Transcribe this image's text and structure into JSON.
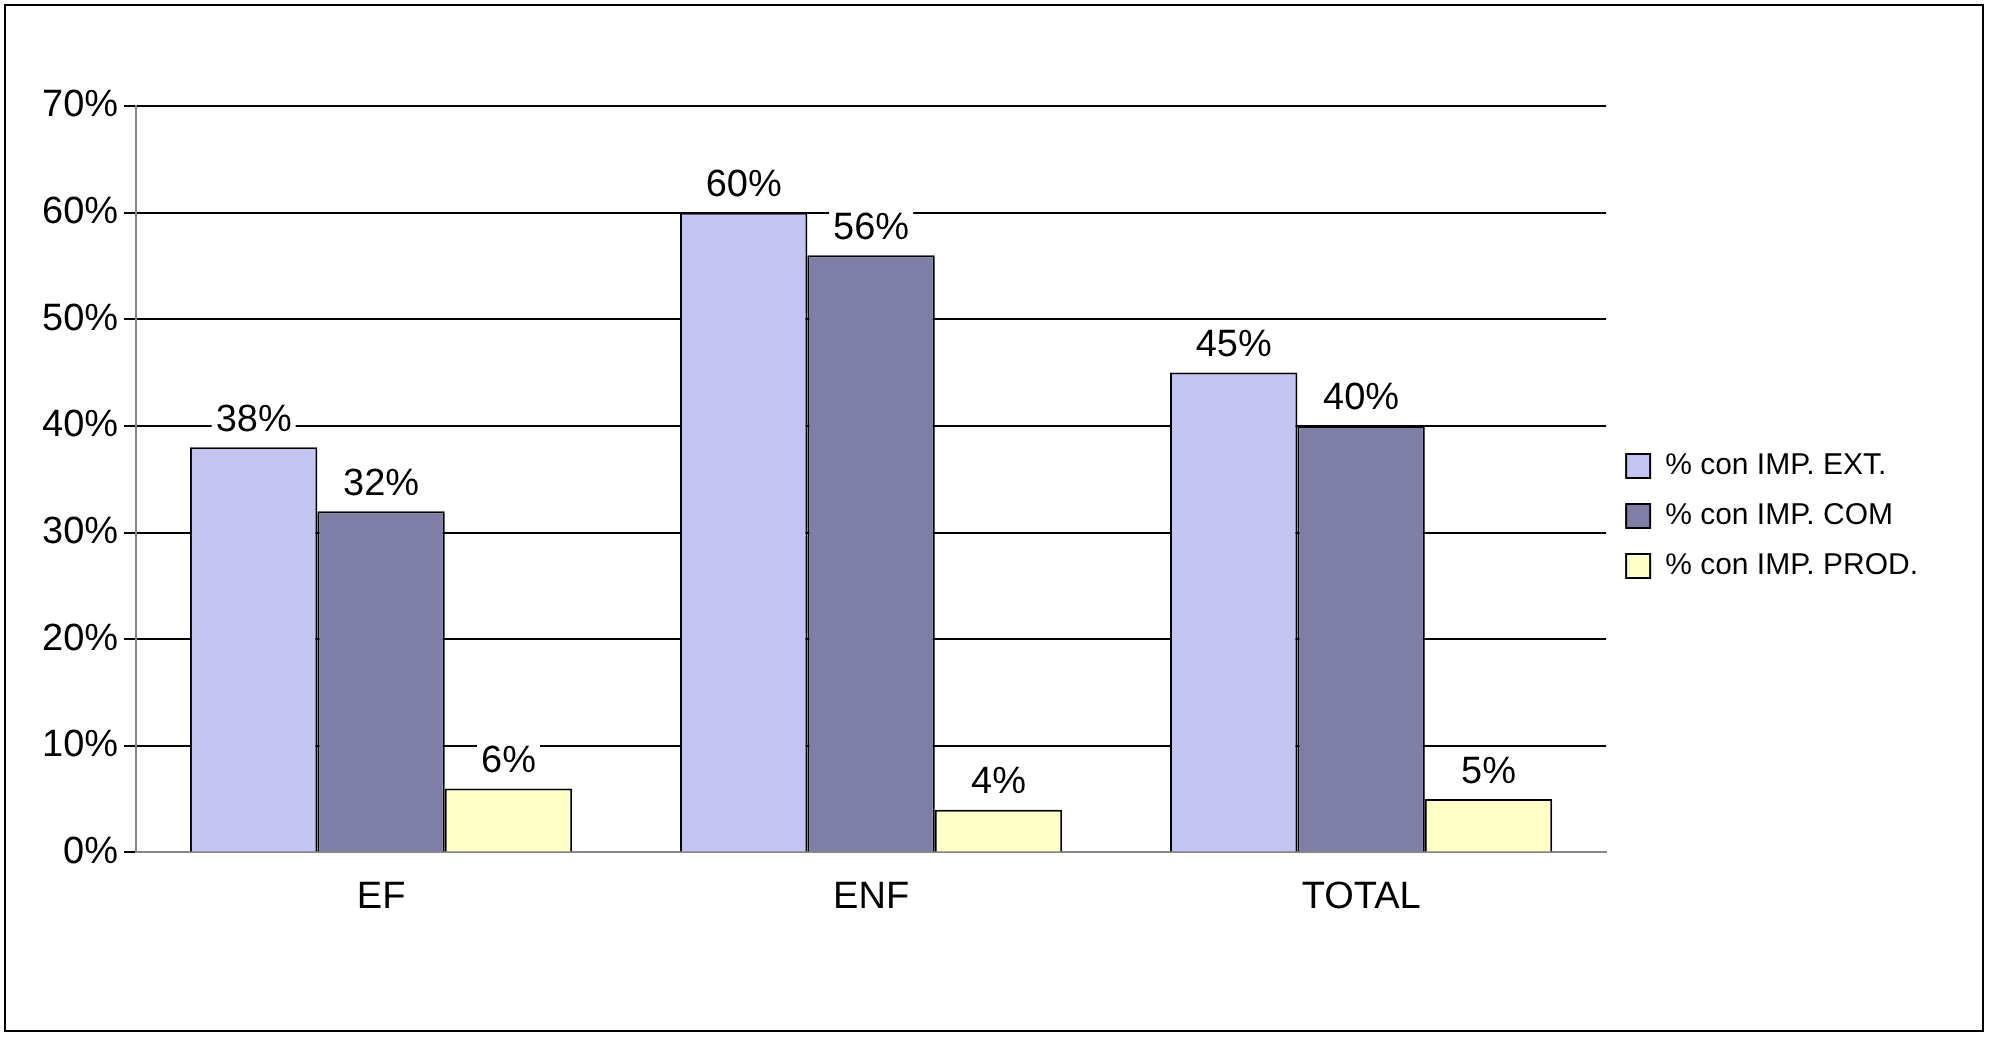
{
  "chart_data": {
    "type": "bar",
    "categories": [
      "EF",
      "ENF",
      "TOTAL"
    ],
    "series": [
      {
        "name": "% con IMP. EXT.",
        "color": "#c4c4f2",
        "values": [
          38,
          60,
          45
        ],
        "value_labels": [
          "38%",
          "60%",
          "45%"
        ]
      },
      {
        "name": "% con IMP. COM",
        "color": "#7e7ea6",
        "values": [
          32,
          56,
          40
        ],
        "value_labels": [
          "32%",
          "56%",
          "40%"
        ]
      },
      {
        "name": "% con IMP. PROD.",
        "color": "#ffffc8",
        "values": [
          6,
          4,
          5
        ],
        "value_labels": [
          "6%",
          "4%",
          "5%"
        ]
      }
    ],
    "ylim": [
      0,
      70
    ],
    "yticks": [
      {
        "value": 0,
        "label": "0%"
      },
      {
        "value": 10,
        "label": "10%"
      },
      {
        "value": 20,
        "label": "20%"
      },
      {
        "value": 30,
        "label": "30%"
      },
      {
        "value": 40,
        "label": "40%"
      },
      {
        "value": 50,
        "label": "50%"
      },
      {
        "value": 60,
        "label": "60%"
      },
      {
        "value": 70,
        "label": "70%"
      }
    ],
    "grid": "y",
    "legend": "right"
  }
}
